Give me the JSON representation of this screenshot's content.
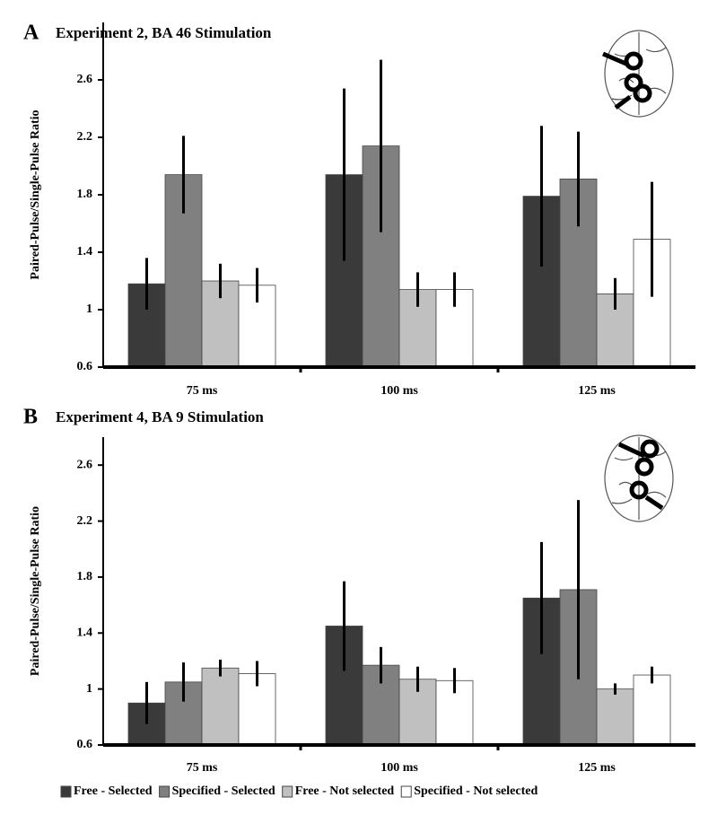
{
  "chart_data": [
    {
      "type": "bar",
      "panel_label": "A",
      "title": "Experiment 2, BA 46 Stimulation",
      "y_label": "Paired-Pulse/Single-Pulse Ratio",
      "categories": [
        "75 ms",
        "100 ms",
        "125 ms"
      ],
      "ylim": [
        0.6,
        3.0
      ],
      "yticks": [
        0.6,
        1,
        1.4,
        1.8,
        2.2,
        2.6
      ],
      "series": [
        {
          "color": "#3a3a3a",
          "values": [
            1.18,
            1.94,
            1.79
          ],
          "errors": [
            0.18,
            0.6,
            0.49
          ]
        },
        {
          "color": "#808080",
          "values": [
            1.94,
            2.14,
            1.91
          ],
          "errors": [
            0.27,
            0.6,
            0.33
          ]
        },
        {
          "color": "#c0c0c0",
          "values": [
            1.2,
            1.14,
            1.11
          ],
          "errors": [
            0.12,
            0.12,
            0.11
          ]
        },
        {
          "color": "#ffffff",
          "values": [
            1.17,
            1.14,
            1.49
          ],
          "errors": [
            0.12,
            0.12,
            0.4
          ]
        }
      ]
    },
    {
      "type": "bar",
      "panel_label": "B",
      "title": "Experiment 4,  BA 9 Stimulation",
      "y_label": "Paired-Pulse/Single-Pulse Ratio",
      "categories": [
        "75 ms",
        "100 ms",
        "125 ms"
      ],
      "ylim": [
        0.6,
        2.8
      ],
      "yticks": [
        0.6,
        1,
        1.4,
        1.8,
        2.2,
        2.6
      ],
      "legend": "bottom",
      "series": [
        {
          "name": "Free - Selected",
          "color": "#3a3a3a",
          "values": [
            0.9,
            1.45,
            1.65
          ],
          "errors": [
            0.15,
            0.32,
            0.4
          ]
        },
        {
          "name": "Specified - Selected",
          "color": "#808080",
          "values": [
            1.05,
            1.17,
            1.71
          ],
          "errors": [
            0.14,
            0.13,
            0.64
          ]
        },
        {
          "name": "Free - Not selected",
          "color": "#c0c0c0",
          "values": [
            1.15,
            1.07,
            1.0
          ],
          "errors": [
            0.06,
            0.09,
            0.04
          ]
        },
        {
          "name": "Specified - Not selected",
          "color": "#ffffff",
          "values": [
            1.11,
            1.06,
            1.1
          ],
          "errors": [
            0.09,
            0.09,
            0.06
          ]
        }
      ]
    }
  ]
}
